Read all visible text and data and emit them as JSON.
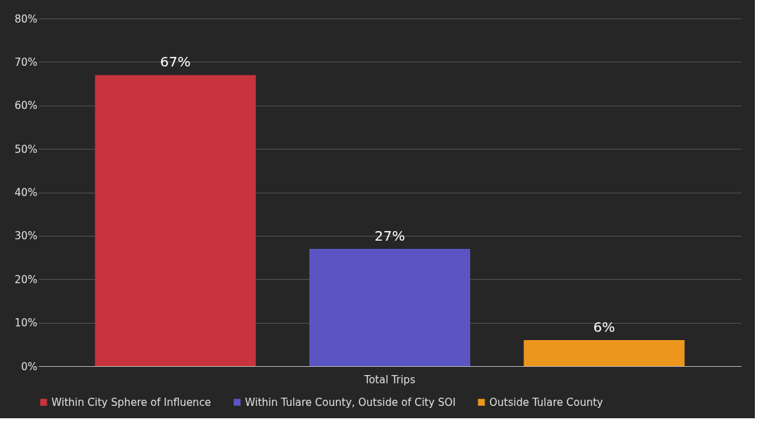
{
  "chart_data": {
    "type": "bar",
    "categories": [
      "Total Trips"
    ],
    "series": [
      {
        "name": "Within City Sphere of Influence",
        "color": "#c8343e",
        "values": [
          67
        ],
        "value_labels": [
          "67%"
        ]
      },
      {
        "name": "Within Tulare County, Outside of City SOI",
        "color": "#5b55c4",
        "values": [
          27
        ],
        "value_labels": [
          "27%"
        ]
      },
      {
        "name": "Outside Tulare County",
        "color": "#ec961e",
        "values": [
          6
        ],
        "value_labels": [
          "6%"
        ]
      }
    ],
    "ylim": [
      0,
      80
    ],
    "yticks": [
      {
        "value": 0,
        "label": "0%"
      },
      {
        "value": 10,
        "label": "10%"
      },
      {
        "value": 20,
        "label": "20%"
      },
      {
        "value": 30,
        "label": "30%"
      },
      {
        "value": 40,
        "label": "40%"
      },
      {
        "value": 50,
        "label": "50%"
      },
      {
        "value": 60,
        "label": "60%"
      },
      {
        "value": 70,
        "label": "70%"
      },
      {
        "value": 80,
        "label": "80%"
      }
    ],
    "grid": "y",
    "legend": "bottom"
  }
}
